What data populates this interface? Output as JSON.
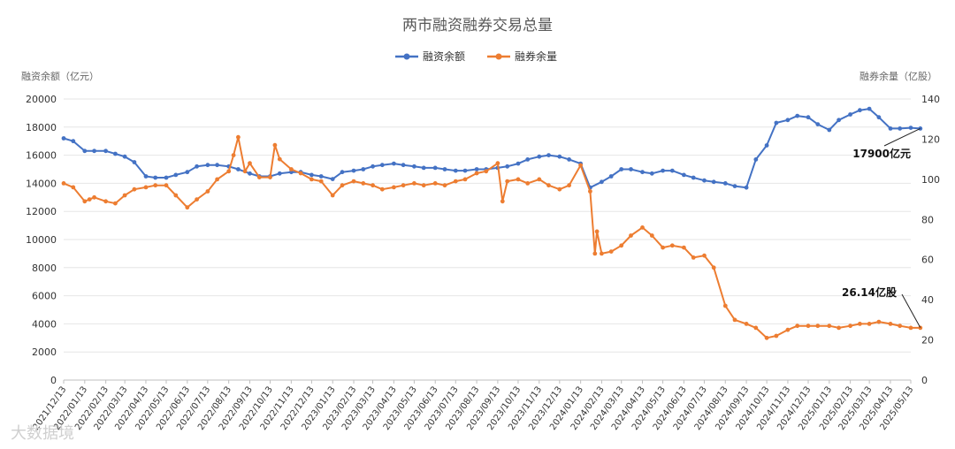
{
  "chart_data": {
    "type": "line",
    "title": "两市融资融券交易总量",
    "y_left_label": "融资余额（亿元）",
    "y_right_label": "融券余量（亿股）",
    "y_left_ticks": [
      "0",
      "2000",
      "4000",
      "6000",
      "8000",
      "10000",
      "12000",
      "14000",
      "16000",
      "18000",
      "20000"
    ],
    "y_right_ticks": [
      "0",
      "20",
      "40",
      "60",
      "80",
      "100",
      "120",
      "140"
    ],
    "ylim_left": [
      0,
      20000
    ],
    "ylim_right": [
      0,
      140
    ],
    "legend_position": "top-center",
    "grid": true,
    "colors": {
      "margin": "#4472C4",
      "short": "#ED7D31"
    },
    "x_ticks": [
      "2021/12/13",
      "2022/01/13",
      "2022/02/13",
      "2022/03/13",
      "2022/04/13",
      "2022/05/13",
      "2022/06/13",
      "2022/07/13",
      "2022/08/13",
      "2022/09/13",
      "2022/10/13",
      "2022/11/13",
      "2022/12/13",
      "2023/01/13",
      "2023/02/13",
      "2023/03/13",
      "2023/04/13",
      "2023/05/13",
      "2023/06/13",
      "2023/07/13",
      "2023/08/13",
      "2023/09/13",
      "2023/10/13",
      "2023/11/13",
      "2023/12/13",
      "2024/01/13",
      "2024/02/13",
      "2024/03/13",
      "2024/04/13",
      "2024/05/13",
      "2024/06/13",
      "2024/07/13",
      "2024/08/13",
      "2024/09/13",
      "2024/10/13",
      "2024/11/13",
      "2024/12/13",
      "2025/01/13",
      "2025/02/13",
      "2025/03/13",
      "2025/04/13",
      "2025/05/13"
    ],
    "series": [
      {
        "name": "融资余额",
        "axis": "left",
        "x": [
          "2021/12/13",
          "2021/12/27",
          "2022/01/13",
          "2022/01/27",
          "2022/02/13",
          "2022/02/27",
          "2022/03/13",
          "2022/03/27",
          "2022/04/13",
          "2022/04/27",
          "2022/05/13",
          "2022/05/27",
          "2022/06/13",
          "2022/06/27",
          "2022/07/13",
          "2022/07/27",
          "2022/08/13",
          "2022/08/27",
          "2022/09/13",
          "2022/09/27",
          "2022/10/13",
          "2022/10/27",
          "2022/11/13",
          "2022/11/27",
          "2022/12/13",
          "2022/12/27",
          "2023/01/13",
          "2023/01/27",
          "2023/02/13",
          "2023/02/27",
          "2023/03/13",
          "2023/03/27",
          "2023/04/13",
          "2023/04/27",
          "2023/05/13",
          "2023/05/27",
          "2023/06/13",
          "2023/06/27",
          "2023/07/13",
          "2023/07/27",
          "2023/08/13",
          "2023/08/27",
          "2023/09/13",
          "2023/09/27",
          "2023/10/13",
          "2023/10/27",
          "2023/11/13",
          "2023/11/27",
          "2023/12/13",
          "2023/12/27",
          "2024/01/13",
          "2024/01/27",
          "2024/02/13",
          "2024/02/27",
          "2024/03/13",
          "2024/03/27",
          "2024/04/13",
          "2024/04/27",
          "2024/05/13",
          "2024/05/27",
          "2024/06/13",
          "2024/06/27",
          "2024/07/13",
          "2024/07/27",
          "2024/08/13",
          "2024/08/27",
          "2024/09/13",
          "2024/09/27",
          "2024/10/13",
          "2024/10/27",
          "2024/11/13",
          "2024/11/27",
          "2024/12/13",
          "2024/12/27",
          "2025/01/13",
          "2025/01/27",
          "2025/02/13",
          "2025/02/27",
          "2025/03/13",
          "2025/03/27",
          "2025/04/13",
          "2025/04/27",
          "2025/05/13",
          "2025/05/27"
        ],
        "values": [
          17200,
          17000,
          16300,
          16300,
          16300,
          16100,
          15900,
          15500,
          14500,
          14400,
          14400,
          14600,
          14800,
          15200,
          15300,
          15300,
          15200,
          15000,
          14700,
          14500,
          14500,
          14700,
          14800,
          14800,
          14600,
          14500,
          14300,
          14800,
          14900,
          15000,
          15200,
          15300,
          15400,
          15300,
          15200,
          15100,
          15100,
          15000,
          14900,
          14900,
          15000,
          15000,
          15100,
          15200,
          15400,
          15700,
          15900,
          16000,
          15900,
          15700,
          15400,
          13700,
          14100,
          14500,
          15000,
          15000,
          14800,
          14700,
          14900,
          14900,
          14600,
          14400,
          14200,
          14100,
          14000,
          13800,
          13700,
          15700,
          16700,
          18300,
          18500,
          18800,
          18700,
          18200,
          17800,
          18500,
          18900,
          19200,
          19300,
          18700,
          17900,
          17900,
          17950,
          17900
        ]
      },
      {
        "name": "融券余量",
        "axis": "right",
        "x": [
          "2021/12/13",
          "2021/12/27",
          "2022/01/13",
          "2022/01/20",
          "2022/01/27",
          "2022/02/13",
          "2022/02/27",
          "2022/03/13",
          "2022/03/27",
          "2022/04/13",
          "2022/04/27",
          "2022/05/13",
          "2022/05/27",
          "2022/06/13",
          "2022/06/27",
          "2022/07/13",
          "2022/07/27",
          "2022/08/13",
          "2022/08/20",
          "2022/08/27",
          "2022/09/06",
          "2022/09/13",
          "2022/09/27",
          "2022/10/13",
          "2022/10/20",
          "2022/10/27",
          "2022/11/13",
          "2022/11/27",
          "2022/12/13",
          "2022/12/27",
          "2023/01/13",
          "2023/01/27",
          "2023/02/13",
          "2023/02/27",
          "2023/03/13",
          "2023/03/27",
          "2023/04/13",
          "2023/04/27",
          "2023/05/13",
          "2023/05/27",
          "2023/06/13",
          "2023/06/27",
          "2023/07/13",
          "2023/07/27",
          "2023/08/13",
          "2023/08/27",
          "2023/09/13",
          "2023/09/20",
          "2023/09/27",
          "2023/10/13",
          "2023/10/27",
          "2023/11/13",
          "2023/11/27",
          "2023/12/13",
          "2023/12/27",
          "2024/01/13",
          "2024/01/27",
          "2024/02/03",
          "2024/02/06",
          "2024/02/13",
          "2024/02/27",
          "2024/03/13",
          "2024/03/27",
          "2024/04/13",
          "2024/04/27",
          "2024/05/13",
          "2024/05/27",
          "2024/06/13",
          "2024/06/27",
          "2024/07/13",
          "2024/07/27",
          "2024/08/13",
          "2024/08/27",
          "2024/09/13",
          "2024/09/27",
          "2024/10/13",
          "2024/10/27",
          "2024/11/13",
          "2024/11/27",
          "2024/12/13",
          "2024/12/27",
          "2025/01/13",
          "2025/01/27",
          "2025/02/13",
          "2025/02/27",
          "2025/03/13",
          "2025/03/27",
          "2025/04/13",
          "2025/04/27",
          "2025/05/13",
          "2025/05/27"
        ],
        "values": [
          98,
          96,
          89,
          90,
          91,
          89,
          88,
          92,
          95,
          96,
          97,
          97,
          92,
          86,
          90,
          94,
          100,
          104,
          112,
          121,
          104,
          108,
          101,
          101,
          117,
          110,
          105,
          103,
          100,
          99,
          92,
          97,
          99,
          98,
          97,
          95,
          96,
          97,
          98,
          97,
          98,
          97,
          99,
          100,
          103,
          104,
          108,
          89,
          99,
          100,
          98,
          100,
          97,
          95,
          97,
          107,
          94,
          63,
          74,
          63,
          64,
          67,
          72,
          76,
          72,
          66,
          67,
          66,
          61,
          62,
          56,
          37,
          30,
          28,
          26,
          21,
          22,
          25,
          27,
          27,
          27,
          27,
          26,
          27,
          28,
          28,
          29,
          28,
          27,
          26,
          26
        ]
      }
    ],
    "annotations": [
      {
        "text": "17900亿元",
        "series": "融资余额",
        "x": "2025/05/27",
        "y": 17900
      },
      {
        "text": "26.14亿股",
        "series": "融券余量",
        "x": "2025/05/27",
        "y": 26.14
      }
    ],
    "watermark": "大数据境"
  }
}
